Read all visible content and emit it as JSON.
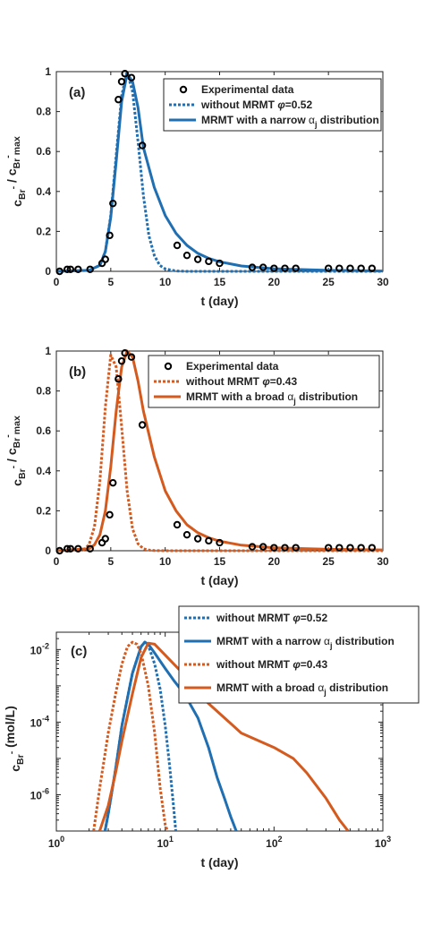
{
  "colors": {
    "blue": "#1f6fb2",
    "orange": "#d45a1e",
    "axis": "#222222",
    "markers": "#000000"
  },
  "chart_data": [
    {
      "type": "line",
      "panel_label": "(a)",
      "xlabel": "t (day)",
      "ylabel": {
        "main": "c",
        "sub1": "Br",
        "sup1": "-",
        "mid": " / c",
        "sub2": "Br",
        "sup2": "-",
        "tail": "max"
      },
      "xlim": [
        0,
        30
      ],
      "ylim": [
        0,
        1
      ],
      "xticks": [
        0,
        5,
        10,
        15,
        20,
        25,
        30
      ],
      "xtick_labels": [
        "0",
        "5",
        "10",
        "15",
        "20",
        "25",
        "30"
      ],
      "yticks": [
        0,
        0.2,
        0.4,
        0.6,
        0.8,
        1
      ],
      "ytick_labels": [
        "0",
        "0.2",
        "0.4",
        "0.6",
        "0.8",
        "1"
      ],
      "legend_position": "top-right",
      "series": [
        {
          "name": "Experimental data",
          "kind": "markers",
          "x": [
            0.3,
            1.0,
            1.3,
            2.0,
            3.1,
            4.2,
            4.5,
            4.9,
            5.2,
            5.7,
            6.0,
            6.3,
            6.9,
            7.9,
            11.1,
            12.0,
            13.0,
            14.0,
            15.0,
            18.0,
            19.0,
            20.0,
            21.0,
            22.0,
            25.0,
            26.0,
            27.0,
            28.0,
            29.0
          ],
          "y": [
            0.0,
            0.01,
            0.01,
            0.01,
            0.01,
            0.04,
            0.06,
            0.18,
            0.34,
            0.86,
            0.95,
            0.99,
            0.97,
            0.63,
            0.13,
            0.08,
            0.06,
            0.05,
            0.04,
            0.02,
            0.02,
            0.015,
            0.015,
            0.015,
            0.015,
            0.015,
            0.015,
            0.015,
            0.015
          ]
        },
        {
          "name": "without MRMT",
          "name_suffix": "=0.52",
          "kind": "dotted",
          "color": "#1f6fb2",
          "x": [
            0,
            3,
            4,
            4.5,
            5,
            5.5,
            6,
            6.5,
            7,
            7.5,
            8,
            8.5,
            9,
            9.5,
            10,
            11,
            12,
            30
          ],
          "y": [
            0,
            0.005,
            0.03,
            0.1,
            0.28,
            0.58,
            0.88,
            1.0,
            0.9,
            0.65,
            0.38,
            0.18,
            0.08,
            0.03,
            0.012,
            0.002,
            0,
            0
          ]
        },
        {
          "name": "MRMT with a narrow",
          "name_suffix": " distribution",
          "kind": "solid",
          "color": "#1f6fb2",
          "x": [
            0,
            3,
            4,
            4.5,
            5,
            5.5,
            6,
            6.5,
            7,
            7.5,
            8,
            9,
            10,
            11,
            12,
            13,
            14,
            15,
            17,
            20,
            25,
            30
          ],
          "y": [
            0,
            0.005,
            0.03,
            0.1,
            0.27,
            0.55,
            0.85,
            0.99,
            0.95,
            0.82,
            0.62,
            0.42,
            0.28,
            0.19,
            0.13,
            0.09,
            0.065,
            0.048,
            0.027,
            0.013,
            0.005,
            0.002
          ]
        }
      ]
    },
    {
      "type": "line",
      "panel_label": "(b)",
      "xlabel": "t (day)",
      "ylabel": {
        "main": "c",
        "sub1": "Br",
        "sup1": "-",
        "mid": " / c",
        "sub2": "Br",
        "sup2": "-",
        "tail": "max"
      },
      "xlim": [
        0,
        30
      ],
      "ylim": [
        0,
        1
      ],
      "xticks": [
        0,
        5,
        10,
        15,
        20,
        25,
        30
      ],
      "xtick_labels": [
        "0",
        "5",
        "10",
        "15",
        "20",
        "25",
        "30"
      ],
      "yticks": [
        0,
        0.2,
        0.4,
        0.6,
        0.8,
        1
      ],
      "ytick_labels": [
        "0",
        "0.2",
        "0.4",
        "0.6",
        "0.8",
        "1"
      ],
      "legend_position": "top-right",
      "series": [
        {
          "name": "Experimental data",
          "kind": "markers",
          "x": [
            0.3,
            1.0,
            1.3,
            2.0,
            3.1,
            4.2,
            4.5,
            4.9,
            5.2,
            5.7,
            6.0,
            6.3,
            6.9,
            7.9,
            11.1,
            12.0,
            13.0,
            14.0,
            15.0,
            18.0,
            19.0,
            20.0,
            21.0,
            22.0,
            25.0,
            26.0,
            27.0,
            28.0,
            29.0
          ],
          "y": [
            0.0,
            0.01,
            0.01,
            0.01,
            0.01,
            0.04,
            0.06,
            0.18,
            0.34,
            0.86,
            0.95,
            0.99,
            0.97,
            0.63,
            0.13,
            0.08,
            0.06,
            0.05,
            0.04,
            0.02,
            0.02,
            0.015,
            0.015,
            0.015,
            0.015,
            0.015,
            0.015,
            0.015,
            0.015
          ]
        },
        {
          "name": "without MRMT",
          "name_suffix": "=0.43",
          "kind": "dotted",
          "color": "#d45a1e",
          "x": [
            0,
            2.5,
            3,
            3.5,
            4,
            4.5,
            5,
            5.5,
            6,
            6.5,
            7,
            7.5,
            8,
            8.5,
            9,
            10,
            30
          ],
          "y": [
            0,
            0.005,
            0.03,
            0.12,
            0.35,
            0.72,
            0.98,
            0.92,
            0.62,
            0.3,
            0.11,
            0.035,
            0.01,
            0.003,
            0.001,
            0,
            0
          ]
        },
        {
          "name": "MRMT with a broad",
          "name_suffix": " distribution",
          "kind": "solid",
          "color": "#d45a1e",
          "x": [
            0,
            3,
            3.5,
            4,
            4.5,
            5,
            5.5,
            6,
            6.5,
            7,
            7.5,
            8,
            9,
            10,
            11,
            12,
            13,
            14,
            15,
            17,
            20,
            25,
            30
          ],
          "y": [
            0,
            0.01,
            0.03,
            0.08,
            0.2,
            0.42,
            0.7,
            0.92,
            1.0,
            0.97,
            0.85,
            0.7,
            0.47,
            0.3,
            0.2,
            0.13,
            0.09,
            0.065,
            0.048,
            0.028,
            0.015,
            0.007,
            0.004
          ]
        }
      ]
    },
    {
      "type": "line",
      "panel_label": "(c)",
      "xlabel": "t (day)",
      "ylabel": {
        "main": "c",
        "sub1": "Br",
        "sup1": "-",
        "mid": " (mol/L)"
      },
      "xscale": "log",
      "yscale": "log",
      "xlim": [
        1,
        1000
      ],
      "ylim": [
        1e-07,
        0.03
      ],
      "xtick_values": [
        1,
        10,
        100,
        1000
      ],
      "xtick_labels": [
        {
          "base": "10",
          "exp": "0"
        },
        {
          "base": "10",
          "exp": "1"
        },
        {
          "base": "10",
          "exp": "2"
        },
        {
          "base": "10",
          "exp": "3"
        }
      ],
      "ytick_values": [
        1e-06,
        0.0001,
        0.01
      ],
      "ytick_labels": [
        {
          "base": "10",
          "exp": "-6"
        },
        {
          "base": "10",
          "exp": "-4"
        },
        {
          "base": "10",
          "exp": "-2"
        }
      ],
      "legend_position": "top (outside)",
      "series": [
        {
          "name": "without MRMT",
          "name_suffix": "=0.52",
          "kind": "dotted",
          "color": "#1f6fb2",
          "x": [
            2.8,
            3,
            3.5,
            4,
            5,
            6,
            6.5,
            7,
            8,
            9,
            10,
            11,
            12,
            12.5
          ],
          "y": [
            1e-07,
            3e-07,
            5e-06,
            8e-05,
            0.0022,
            0.012,
            0.016,
            0.013,
            0.004,
            0.0008,
            8e-05,
            6e-06,
            4e-07,
            1e-07
          ]
        },
        {
          "name": "MRMT with a narrow",
          "name_suffix": " distribution",
          "kind": "solid",
          "color": "#1f6fb2",
          "x": [
            2.8,
            3,
            3.5,
            4,
            5,
            6,
            6.5,
            7,
            8,
            10,
            12,
            15,
            20,
            25,
            30,
            35,
            40,
            45
          ],
          "y": [
            1e-07,
            3e-07,
            5e-06,
            8e-05,
            0.0022,
            0.012,
            0.016,
            0.014,
            0.008,
            0.003,
            0.0014,
            0.0006,
            0.00013,
            2e-05,
            3e-06,
            8e-07,
            2.5e-07,
            1e-07
          ]
        },
        {
          "name": "without MRMT",
          "name_suffix": "=0.43",
          "kind": "dotted",
          "color": "#d45a1e",
          "x": [
            2.2,
            2.5,
            3,
            3.5,
            4,
            4.5,
            5,
            5.5,
            6,
            7,
            8,
            9,
            10,
            10.5
          ],
          "y": [
            1e-07,
            1.5e-06,
            5e-05,
            0.0006,
            0.004,
            0.012,
            0.016,
            0.014,
            0.008,
            0.001,
            5e-05,
            1.5e-06,
            1.5e-07,
            1e-07
          ]
        },
        {
          "name": "MRMT with a broad",
          "name_suffix": " distribution",
          "kind": "solid",
          "color": "#d45a1e",
          "x": [
            2.5,
            3,
            3.5,
            4,
            5,
            6,
            7,
            8,
            10,
            15,
            20,
            30,
            50,
            100,
            150,
            200,
            300,
            400,
            480
          ],
          "y": [
            1e-07,
            5e-07,
            4e-06,
            3e-05,
            0.0006,
            0.006,
            0.015,
            0.014,
            0.007,
            0.002,
            0.0006,
            0.0002,
            5e-05,
            2e-05,
            1e-05,
            4e-06,
            8e-07,
            2e-07,
            1e-07
          ]
        }
      ]
    }
  ]
}
